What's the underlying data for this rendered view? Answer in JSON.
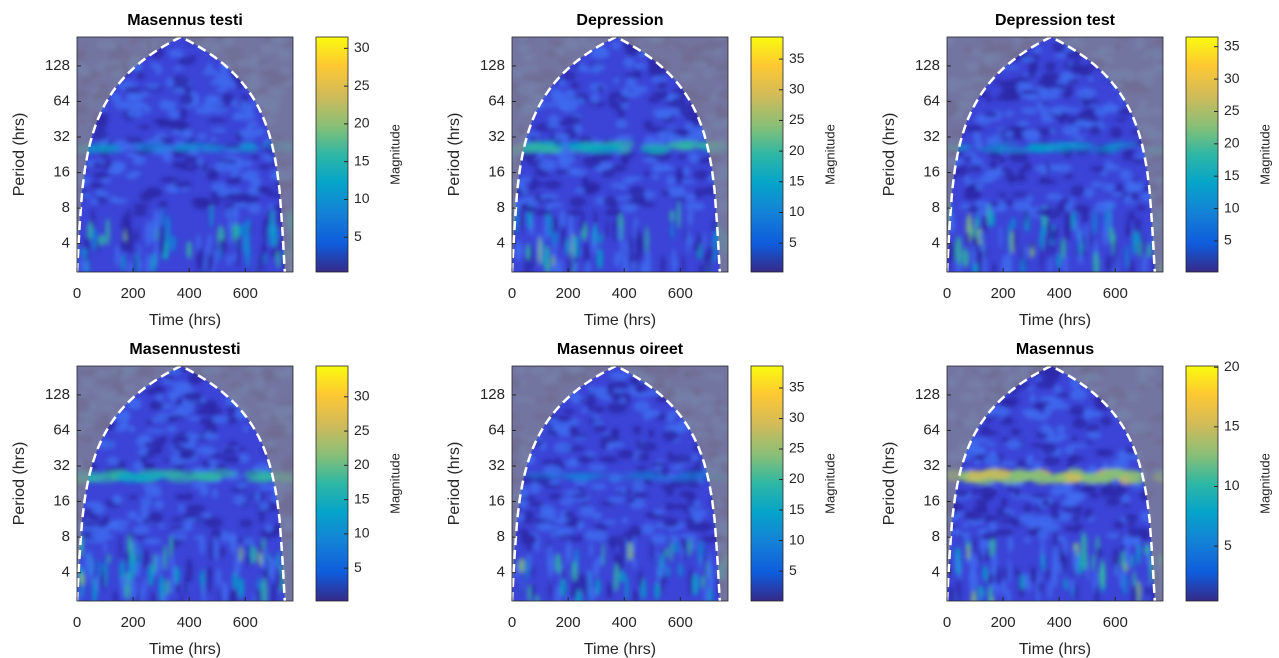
{
  "chart_data": [
    {
      "type": "heatmap",
      "title": "Masennus testi",
      "xlabel": "Time (hrs)",
      "ylabel": "Period (hrs)",
      "colorbar_label": "Magnitude",
      "yscale": "log2",
      "xlim": [
        0,
        770
      ],
      "xticks": [
        0,
        200,
        400,
        600
      ],
      "ylim": [
        2.3,
        225
      ],
      "yticks": [
        4,
        8,
        16,
        32,
        64,
        128
      ],
      "clim": [
        0.4,
        31.5
      ],
      "cticks": [
        5,
        10,
        15,
        20,
        25,
        30
      ]
    },
    {
      "type": "heatmap",
      "title": "Depression",
      "xlabel": "Time (hrs)",
      "ylabel": "Period (hrs)",
      "colorbar_label": "Magnitude",
      "yscale": "log2",
      "xlim": [
        0,
        770
      ],
      "xticks": [
        0,
        200,
        400,
        600
      ],
      "ylim": [
        2.3,
        225
      ],
      "yticks": [
        4,
        8,
        16,
        32,
        64,
        128
      ],
      "clim": [
        0.3,
        38.6
      ],
      "cticks": [
        5,
        10,
        15,
        20,
        25,
        30,
        35
      ]
    },
    {
      "type": "heatmap",
      "title": "Depression test",
      "xlabel": "Time (hrs)",
      "ylabel": "Period (hrs)",
      "colorbar_label": "Magnitude",
      "yscale": "log2",
      "xlim": [
        0,
        770
      ],
      "xticks": [
        0,
        200,
        400,
        600
      ],
      "ylim": [
        2.3,
        225
      ],
      "yticks": [
        4,
        8,
        16,
        32,
        64,
        128
      ],
      "clim": [
        0.2,
        36.5
      ],
      "cticks": [
        5,
        10,
        15,
        20,
        25,
        30,
        35
      ]
    },
    {
      "type": "heatmap",
      "title": "Masennustesti",
      "xlabel": "Time (hrs)",
      "ylabel": "Period (hrs)",
      "colorbar_label": "Magnitude",
      "yscale": "log2",
      "xlim": [
        0,
        770
      ],
      "xticks": [
        0,
        200,
        400,
        600
      ],
      "ylim": [
        2.3,
        225
      ],
      "yticks": [
        4,
        8,
        16,
        32,
        64,
        128
      ],
      "clim": [
        0.2,
        34.5
      ],
      "cticks": [
        5,
        10,
        15,
        20,
        25,
        30
      ]
    },
    {
      "type": "heatmap",
      "title": "Masennus oireet",
      "xlabel": "Time (hrs)",
      "ylabel": "Period (hrs)",
      "colorbar_label": "Magnitude",
      "yscale": "log2",
      "xlim": [
        0,
        770
      ],
      "xticks": [
        0,
        200,
        400,
        600
      ],
      "ylim": [
        2.3,
        225
      ],
      "yticks": [
        4,
        8,
        16,
        32,
        64,
        128
      ],
      "clim": [
        0.1,
        38.6
      ],
      "cticks": [
        5,
        10,
        15,
        20,
        25,
        30,
        35
      ]
    },
    {
      "type": "heatmap",
      "title": "Masennus",
      "xlabel": "Time (hrs)",
      "ylabel": "Period (hrs)",
      "colorbar_label": "Magnitude",
      "yscale": "log2",
      "xlim": [
        0,
        770
      ],
      "xticks": [
        0,
        200,
        400,
        600
      ],
      "ylim": [
        2.3,
        225
      ],
      "yticks": [
        4,
        8,
        16,
        32,
        64,
        128
      ],
      "clim": [
        0.4,
        20.1
      ],
      "cticks": [
        5,
        10,
        15,
        20
      ]
    }
  ]
}
